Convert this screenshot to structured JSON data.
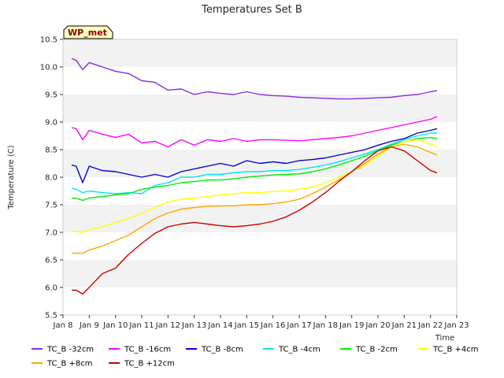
{
  "chart_data": {
    "type": "line",
    "title": "Temperatures Set B",
    "xlabel": "Time",
    "ylabel": "Temperature (C)",
    "ylim": [
      5.5,
      10.5
    ],
    "xlim": [
      8,
      23
    ],
    "yticks": [
      "5.5",
      "6.0",
      "6.5",
      "7.0",
      "7.5",
      "8.0",
      "8.5",
      "9.0",
      "9.5",
      "10.0",
      "10.5"
    ],
    "xticks": [
      "Jan 8",
      "Jan 9",
      "Jan 10",
      "Jan 11",
      "Jan 12",
      "Jan 13",
      "Jan 14",
      "Jan 15",
      "Jan 16",
      "Jan 17",
      "Jan 18",
      "Jan 19",
      "Jan 20",
      "Jan 21",
      "Jan 22",
      "Jan 23"
    ],
    "badge": "WP_met",
    "grid": "horizontal bands",
    "legend_position": "bottom",
    "x": [
      8.33,
      8.5,
      8.75,
      9.0,
      9.5,
      10.0,
      10.5,
      11.0,
      11.5,
      12.0,
      12.5,
      13.0,
      13.5,
      14.0,
      14.5,
      15.0,
      15.5,
      16.0,
      16.5,
      17.0,
      17.5,
      18.0,
      18.5,
      19.0,
      19.5,
      20.0,
      20.5,
      21.0,
      21.5,
      22.0,
      22.25
    ],
    "series": [
      {
        "name": "TC_B -32cm",
        "color": "#8a2be2",
        "values": [
          10.15,
          10.12,
          9.95,
          10.08,
          10.0,
          9.92,
          9.88,
          9.75,
          9.72,
          9.58,
          9.6,
          9.5,
          9.55,
          9.52,
          9.5,
          9.55,
          9.5,
          9.48,
          9.47,
          9.45,
          9.44,
          9.43,
          9.42,
          9.42,
          9.43,
          9.44,
          9.45,
          9.48,
          9.5,
          9.55,
          9.57
        ]
      },
      {
        "name": "TC_B -16cm",
        "color": "#ff00ff",
        "values": [
          8.9,
          8.88,
          8.68,
          8.85,
          8.78,
          8.72,
          8.78,
          8.62,
          8.65,
          8.55,
          8.68,
          8.58,
          8.68,
          8.65,
          8.7,
          8.65,
          8.68,
          8.68,
          8.67,
          8.66,
          8.68,
          8.7,
          8.72,
          8.75,
          8.8,
          8.85,
          8.9,
          8.95,
          9.0,
          9.05,
          9.1
        ]
      },
      {
        "name": "TC_B -8cm",
        "color": "#0000cd",
        "values": [
          8.22,
          8.2,
          7.9,
          8.2,
          8.12,
          8.1,
          8.05,
          8.0,
          8.05,
          8.0,
          8.1,
          8.15,
          8.2,
          8.25,
          8.2,
          8.3,
          8.25,
          8.28,
          8.25,
          8.3,
          8.32,
          8.35,
          8.4,
          8.45,
          8.5,
          8.58,
          8.65,
          8.7,
          8.8,
          8.85,
          8.88
        ]
      },
      {
        "name": "TC_B -4cm",
        "color": "#00e5ee",
        "values": [
          7.8,
          7.78,
          7.72,
          7.75,
          7.72,
          7.7,
          7.72,
          7.7,
          7.85,
          7.9,
          8.0,
          8.0,
          8.05,
          8.05,
          8.08,
          8.1,
          8.1,
          8.12,
          8.12,
          8.14,
          8.18,
          8.22,
          8.28,
          8.35,
          8.42,
          8.5,
          8.6,
          8.68,
          8.75,
          8.8,
          8.8
        ]
      },
      {
        "name": "TC_B -2cm",
        "color": "#00ee00",
        "values": [
          7.62,
          7.62,
          7.58,
          7.62,
          7.65,
          7.68,
          7.7,
          7.78,
          7.82,
          7.85,
          7.9,
          7.92,
          7.95,
          7.95,
          7.97,
          8.0,
          8.02,
          8.04,
          8.05,
          8.06,
          8.1,
          8.15,
          8.22,
          8.3,
          8.38,
          8.48,
          8.58,
          8.65,
          8.7,
          8.72,
          8.7
        ]
      },
      {
        "name": "TC_B +4cm",
        "color": "#ffff00",
        "values": [
          7.02,
          7.02,
          7.0,
          7.05,
          7.1,
          7.18,
          7.25,
          7.35,
          7.45,
          7.55,
          7.6,
          7.62,
          7.65,
          7.68,
          7.7,
          7.72,
          7.72,
          7.74,
          7.75,
          7.78,
          7.82,
          7.9,
          8.0,
          8.1,
          8.22,
          8.38,
          8.55,
          8.65,
          8.68,
          8.6,
          8.55
        ]
      },
      {
        "name": "TC_B +8cm",
        "color": "#ffa500",
        "values": [
          6.62,
          6.62,
          6.62,
          6.68,
          6.75,
          6.85,
          6.95,
          7.1,
          7.25,
          7.35,
          7.42,
          7.45,
          7.47,
          7.48,
          7.48,
          7.5,
          7.5,
          7.52,
          7.55,
          7.6,
          7.7,
          7.82,
          7.95,
          8.1,
          8.25,
          8.42,
          8.55,
          8.6,
          8.55,
          8.45,
          8.4
        ]
      },
      {
        "name": "TC_B +12cm",
        "color": "#cd0000",
        "values": [
          5.95,
          5.95,
          5.88,
          6.0,
          6.25,
          6.35,
          6.6,
          6.8,
          6.98,
          7.1,
          7.15,
          7.18,
          7.15,
          7.12,
          7.1,
          7.12,
          7.15,
          7.2,
          7.28,
          7.4,
          7.55,
          7.72,
          7.92,
          8.1,
          8.3,
          8.48,
          8.55,
          8.48,
          8.3,
          8.12,
          8.08
        ]
      }
    ]
  }
}
